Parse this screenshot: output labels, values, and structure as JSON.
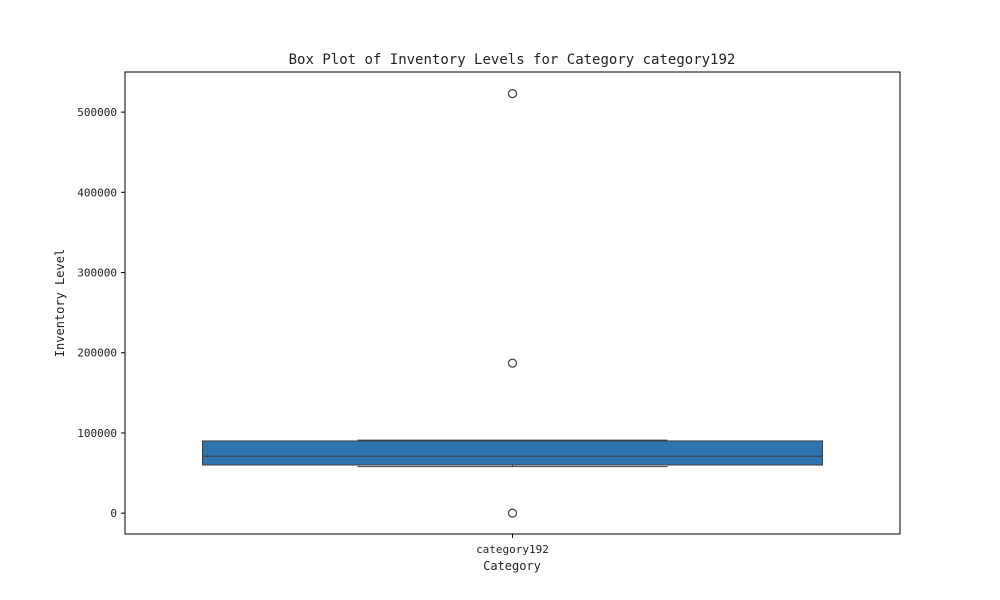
{
  "chart_data": {
    "type": "box",
    "title": "Box Plot of Inventory Levels for Category category192",
    "xlabel": "Category",
    "ylabel": "Inventory Level",
    "categories": [
      "category192"
    ],
    "ylim": [
      -26000,
      550000
    ],
    "yticks": [
      0,
      100000,
      200000,
      300000,
      400000,
      500000
    ],
    "ytick_labels": [
      "0",
      "100000",
      "200000",
      "300000",
      "400000",
      "500000"
    ],
    "boxes": [
      {
        "category": "category192",
        "whisker_low": 58000,
        "q1": 60000,
        "median": 71000,
        "q3": 90000,
        "whisker_high": 91000,
        "outliers": [
          523000,
          187000,
          0
        ]
      }
    ],
    "colors": {
      "box_fill": "#2e75b0",
      "box_edge": "#3f3f3f",
      "outlier_edge": "#3f3f3f"
    },
    "grid": false
  }
}
